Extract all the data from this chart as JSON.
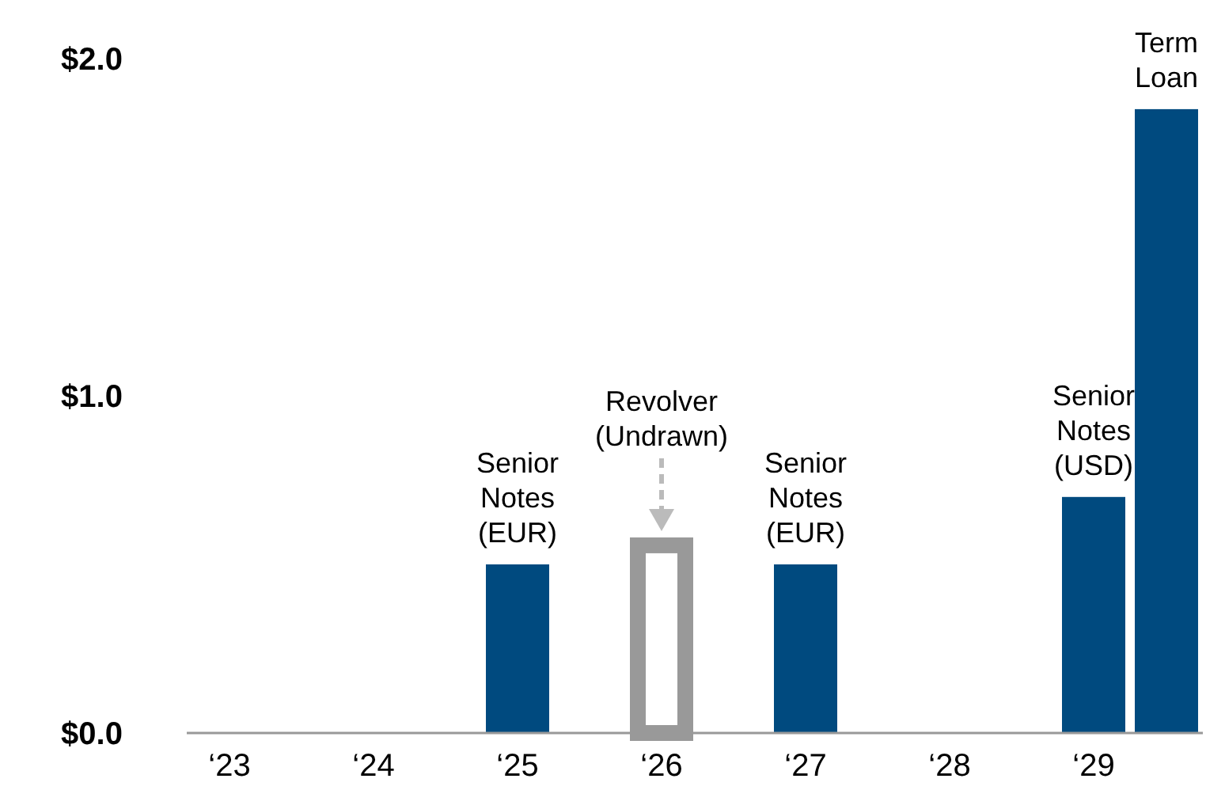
{
  "chart_data": {
    "type": "bar",
    "categories": [
      "‘23",
      "‘24",
      "‘25",
      "‘26",
      "‘27",
      "‘28",
      "‘29"
    ],
    "series": [
      {
        "color": "#004a7f",
        "values": [
          null,
          null,
          0.5,
          null,
          0.5,
          null,
          0.7
        ]
      },
      {
        "color": "#999999",
        "line_style": "solid",
        "values": [
          null,
          null,
          null,
          0.58,
          null,
          null,
          null
        ]
      },
      {
        "color": "#004a7f",
        "values": [
          null,
          null,
          null,
          null,
          null,
          null,
          1.85
        ]
      }
    ],
    "ylim": [
      0,
      2
    ],
    "yticks": [
      {
        "value": 0,
        "label": "$0.0"
      },
      {
        "value": 1,
        "label": "$1.0"
      },
      {
        "value": 2,
        "label": "$2.0"
      }
    ],
    "grid": false,
    "annotations": [
      "Senior\nNotes\n(EUR)",
      "Revolver\n(Undrawn)",
      "Senior\nNotes\n(EUR)",
      "Senior\nNotes\n(USD)",
      "Term\nLoan"
    ]
  }
}
